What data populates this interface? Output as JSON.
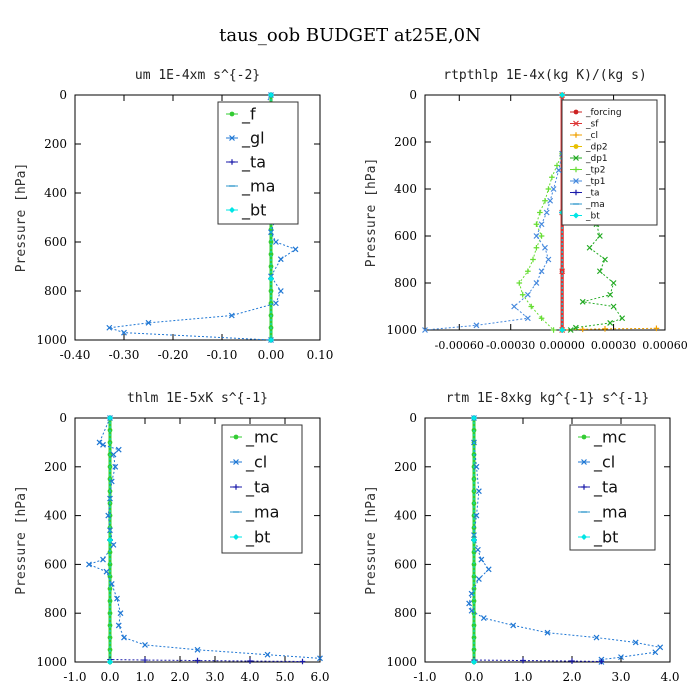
{
  "title": "taus_oob  BUDGET at25E,0N",
  "chart_data": [
    {
      "type": "line",
      "title": "um   1E-4xm s^{-2}",
      "ylabel": "Pressure [hPa]",
      "xlim": [
        -0.4,
        0.1
      ],
      "ylim": [
        1000,
        0
      ],
      "xticks": [
        "-0.40",
        "-0.30",
        "-0.20",
        "-0.10",
        "0.00",
        "0.10"
      ],
      "xtick_values": [
        -0.4,
        -0.3,
        -0.2,
        -0.1,
        0.0,
        0.1
      ],
      "yticks": [
        "0",
        "200",
        "400",
        "600",
        "800",
        "1000"
      ],
      "ytick_values": [
        0,
        200,
        400,
        600,
        800,
        1000
      ],
      "legend_position": "top-right",
      "legend_font": 16,
      "series": [
        {
          "name": "_f",
          "color": "#33cc33",
          "marker": "dot",
          "x": [
            0,
            0,
            0,
            0,
            0,
            0,
            0,
            0,
            0,
            0,
            0,
            0,
            0,
            0,
            0,
            0,
            0,
            0,
            0,
            0,
            0
          ],
          "y": [
            0,
            50,
            100,
            150,
            200,
            250,
            300,
            350,
            400,
            450,
            500,
            550,
            600,
            650,
            700,
            750,
            800,
            850,
            900,
            950,
            1000
          ]
        },
        {
          "name": "_gl",
          "color": "#1f77d4",
          "marker": "x",
          "x": [
            0,
            -0.03,
            -0.01,
            0.05,
            0.0,
            0.02,
            0.01,
            0.01,
            0.0,
            0.0,
            0.01,
            0.0,
            0.01,
            0.05,
            0.02,
            0.0,
            0.02,
            0.01,
            -0.08,
            -0.25,
            -0.33,
            -0.3,
            0
          ],
          "y": [
            0,
            100,
            110,
            120,
            140,
            160,
            200,
            260,
            320,
            400,
            500,
            560,
            600,
            630,
            670,
            740,
            800,
            850,
            900,
            930,
            950,
            970,
            1000
          ]
        },
        {
          "name": "_ta",
          "color": "#1a1aaa",
          "marker": "plus",
          "x": [
            0,
            0,
            0,
            0,
            0
          ],
          "y": [
            0,
            250,
            500,
            750,
            1000
          ]
        },
        {
          "name": "_ma",
          "color": "#3399cc",
          "marker": "dash",
          "x": [
            0,
            0,
            0,
            0,
            0
          ],
          "y": [
            0,
            250,
            500,
            750,
            1000
          ]
        },
        {
          "name": "_bt",
          "color": "#00e5e5",
          "marker": "diamond",
          "x": [
            0,
            0,
            0,
            0,
            0
          ],
          "y": [
            0,
            250,
            500,
            750,
            1000
          ]
        }
      ]
    },
    {
      "type": "line",
      "title": "rtpthlp   1E-4x(kg K)/(kg s)",
      "ylabel": "Pressure [hPa]",
      "xlim": [
        -0.0008,
        0.0006
      ],
      "ylim": [
        1000,
        0
      ],
      "xticks": [
        "-0.00060",
        "-0.00030",
        "0.00000",
        "0.00030",
        "0.00060"
      ],
      "xtick_values": [
        -0.0006,
        -0.0003,
        0.0,
        0.0003,
        0.0006
      ],
      "yticks": [
        "0",
        "200",
        "400",
        "600",
        "800",
        "1000"
      ],
      "ytick_values": [
        0,
        200,
        400,
        600,
        800,
        1000
      ],
      "legend_position": "top-right",
      "legend_font": 9,
      "series": [
        {
          "name": "_forcing",
          "color": "#cc2222",
          "marker": "dot",
          "x": [
            0,
            0,
            0,
            0,
            0
          ],
          "y": [
            0,
            250,
            500,
            750,
            1000
          ]
        },
        {
          "name": "_sf",
          "color": "#dd3333",
          "marker": "x",
          "x": [
            0,
            0,
            0,
            0,
            0
          ],
          "y": [
            0,
            250,
            500,
            750,
            1000
          ]
        },
        {
          "name": "_cl",
          "color": "#f0a000",
          "marker": "plus",
          "x": [
            0,
            0.00012,
            0.00025,
            0.00055
          ],
          "y": [
            1000,
            997,
            995,
            993
          ]
        },
        {
          "name": "_dp2",
          "color": "#e8c000",
          "marker": "dot",
          "x": [
            0,
            0,
            0
          ],
          "y": [
            0,
            500,
            1000
          ]
        },
        {
          "name": "_dp1",
          "color": "#22aa22",
          "marker": "x",
          "x": [
            0,
            1e-05,
            5e-05,
            0.0001,
            0.00013,
            0.00017,
            0.0002,
            0.00022,
            0.00016,
            0.00025,
            0.00022,
            0.0003,
            0.00028,
            0.00012,
            0.0003,
            0.00035,
            0.00028,
            8e-05,
            5e-05
          ],
          "y": [
            250,
            300,
            350,
            400,
            450,
            500,
            550,
            600,
            650,
            700,
            750,
            800,
            850,
            880,
            900,
            950,
            970,
            990,
            1000
          ]
        },
        {
          "name": "_tp2",
          "color": "#66dd33",
          "marker": "plus",
          "x": [
            0,
            -3e-05,
            -6e-05,
            -8e-05,
            -0.0001,
            -0.00013,
            -0.00015,
            -0.00012,
            -0.00015,
            -0.00017,
            -0.0002,
            -0.00025,
            -0.00023,
            -0.00018,
            -0.00012,
            -5e-05
          ],
          "y": [
            250,
            300,
            350,
            400,
            450,
            500,
            550,
            600,
            650,
            700,
            750,
            800,
            850,
            900,
            950,
            1000
          ]
        },
        {
          "name": "_tp1",
          "color": "#4488dd",
          "marker": "x",
          "x": [
            0,
            -2e-05,
            -5e-05,
            -7e-05,
            -9e-05,
            -0.00012,
            -0.00015,
            -0.0001,
            -8e-05,
            -0.00012,
            -0.00015,
            -0.0002,
            -0.00028,
            -0.0002,
            -0.0005,
            -0.0008
          ],
          "y": [
            250,
            320,
            400,
            450,
            500,
            550,
            600,
            650,
            700,
            750,
            800,
            850,
            900,
            950,
            980,
            1000
          ]
        },
        {
          "name": "_ta",
          "color": "#1a1aaa",
          "marker": "plus",
          "x": [
            0,
            0,
            0
          ],
          "y": [
            0,
            500,
            1000
          ]
        },
        {
          "name": "_ma",
          "color": "#3399cc",
          "marker": "dash",
          "x": [
            0,
            0,
            0
          ],
          "y": [
            0,
            500,
            1000
          ]
        },
        {
          "name": "_bt",
          "color": "#00e5e5",
          "marker": "diamond",
          "x": [
            0,
            0,
            0
          ],
          "y": [
            0,
            500,
            1000
          ]
        }
      ]
    },
    {
      "type": "line",
      "title": "thlm   1E-5xK s^{-1}",
      "ylabel": "Pressure [hPa]",
      "xlim": [
        -1.0,
        6.0
      ],
      "ylim": [
        1000,
        0
      ],
      "xticks": [
        "-1.0",
        "0.0",
        "1.0",
        "2.0",
        "3.0",
        "4.0",
        "5.0",
        "6.0"
      ],
      "xtick_values": [
        -1,
        0,
        1,
        2,
        3,
        4,
        5,
        6
      ],
      "yticks": [
        "0",
        "200",
        "400",
        "600",
        "800",
        "1000"
      ],
      "ytick_values": [
        0,
        200,
        400,
        600,
        800,
        1000
      ],
      "legend_position": "top-right",
      "legend_font": 16,
      "series": [
        {
          "name": "_mc",
          "color": "#33cc33",
          "marker": "dot",
          "x": [
            0,
            0,
            0,
            0,
            0,
            0,
            0,
            0,
            0,
            0,
            0,
            0,
            0,
            0,
            0,
            0,
            0,
            0,
            0,
            0,
            0
          ],
          "y": [
            0,
            50,
            100,
            150,
            200,
            250,
            300,
            350,
            400,
            450,
            500,
            550,
            600,
            650,
            700,
            750,
            800,
            850,
            900,
            950,
            1000
          ]
        },
        {
          "name": "_cl",
          "color": "#1f77d4",
          "marker": "x",
          "x": [
            0,
            -0.3,
            -0.2,
            0.25,
            0.1,
            0.15,
            0.05,
            0.0,
            -0.05,
            0.0,
            0.1,
            -0.2,
            -0.6,
            -0.1,
            0.05,
            0.2,
            0.3,
            0.25,
            0.4,
            1.0,
            2.5,
            4.5,
            6.0
          ],
          "y": [
            0,
            100,
            110,
            130,
            150,
            200,
            260,
            330,
            400,
            460,
            520,
            580,
            600,
            630,
            680,
            740,
            800,
            850,
            900,
            930,
            950,
            970,
            985
          ]
        },
        {
          "name": "_ta",
          "color": "#1a1aaa",
          "marker": "plus",
          "x": [
            0,
            0,
            0,
            1.0,
            2.5,
            4.0,
            5.5
          ],
          "y": [
            0,
            500,
            990,
            992,
            994,
            996,
            998
          ]
        },
        {
          "name": "_ma",
          "color": "#3399cc",
          "marker": "dash",
          "x": [
            0,
            0,
            0
          ],
          "y": [
            0,
            500,
            1000
          ]
        },
        {
          "name": "_bt",
          "color": "#00e5e5",
          "marker": "diamond",
          "x": [
            0,
            0,
            0
          ],
          "y": [
            0,
            500,
            1000
          ]
        }
      ]
    },
    {
      "type": "line",
      "title": "rtm   1E-8xkg kg^{-1} s^{-1}",
      "ylabel": "Pressure [hPa]",
      "xlim": [
        -1.0,
        4.0
      ],
      "ylim": [
        1000,
        0
      ],
      "xticks": [
        "-1.0",
        "0.0",
        "1.0",
        "2.0",
        "3.0",
        "4.0"
      ],
      "xtick_values": [
        -1,
        0,
        1,
        2,
        3,
        4
      ],
      "yticks": [
        "0",
        "200",
        "400",
        "600",
        "800",
        "1000"
      ],
      "ytick_values": [
        0,
        200,
        400,
        600,
        800,
        1000
      ],
      "legend_position": "top-right",
      "legend_font": 16,
      "series": [
        {
          "name": "_mc",
          "color": "#33cc33",
          "marker": "dot",
          "x": [
            0,
            0,
            0,
            0,
            0,
            0,
            0,
            0,
            0,
            0,
            0,
            0,
            0,
            0,
            0,
            0,
            0,
            0,
            0,
            0,
            0
          ],
          "y": [
            0,
            50,
            100,
            150,
            200,
            250,
            300,
            350,
            400,
            450,
            500,
            550,
            600,
            650,
            700,
            750,
            800,
            850,
            900,
            950,
            1000
          ]
        },
        {
          "name": "_cl",
          "color": "#1f77d4",
          "marker": "x",
          "x": [
            0,
            0.0,
            0.05,
            0.1,
            0.05,
            0.0,
            0.08,
            0.15,
            0.3,
            0.1,
            -0.05,
            -0.1,
            -0.05,
            0.2,
            0.8,
            1.5,
            2.5,
            3.3,
            3.8,
            3.7,
            3.0,
            2.6,
            2.6
          ],
          "y": [
            0,
            100,
            200,
            300,
            400,
            480,
            540,
            580,
            620,
            660,
            720,
            760,
            790,
            820,
            850,
            880,
            900,
            920,
            940,
            960,
            980,
            990,
            1000
          ]
        },
        {
          "name": "_ta",
          "color": "#1a1aaa",
          "marker": "plus",
          "x": [
            0,
            0,
            0,
            1.0,
            2.0,
            2.6
          ],
          "y": [
            0,
            500,
            992,
            994,
            996,
            998
          ]
        },
        {
          "name": "_ma",
          "color": "#3399cc",
          "marker": "dash",
          "x": [
            0,
            0,
            0
          ],
          "y": [
            0,
            500,
            1000
          ]
        },
        {
          "name": "_bt",
          "color": "#00e5e5",
          "marker": "diamond",
          "x": [
            0,
            0,
            0
          ],
          "y": [
            0,
            500,
            1000
          ]
        }
      ]
    }
  ]
}
